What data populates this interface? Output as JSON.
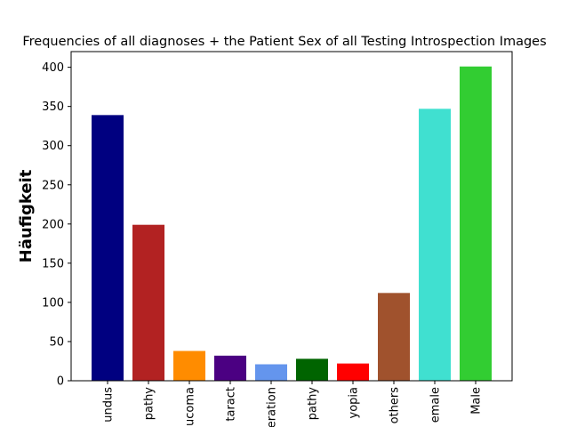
{
  "chart_data": {
    "type": "bar",
    "title": "Frequencies of all diagnoses + the Patient Sex of all Testing Introspection Images",
    "xlabel": "",
    "ylabel": "Häufigkeit",
    "ylim": [
      0,
      420
    ],
    "yticks": [
      0,
      50,
      100,
      150,
      200,
      250,
      300,
      350,
      400
    ],
    "grid": false,
    "categories": [
      "Normal Fundus",
      "Diabetic Retinopathy",
      "Glaucoma",
      "Cataract",
      "Macular Degeneration",
      "Hypertensive Retinopathy",
      "Myopia",
      "Others",
      "Female",
      "Male"
    ],
    "tick_labels_visible": [
      "undus",
      "pathy",
      "ucoma",
      "taract",
      "eration",
      "pathy",
      "yopia",
      "others",
      "emale",
      "Male"
    ],
    "values": [
      339,
      199,
      38,
      32,
      21,
      28,
      22,
      112,
      347,
      401
    ],
    "colors": [
      "#000080",
      "#b22222",
      "#ff8c00",
      "#4b0082",
      "#6495ed",
      "#006400",
      "#ff0000",
      "#a0522d",
      "#40e0d0",
      "#32cd32"
    ]
  }
}
